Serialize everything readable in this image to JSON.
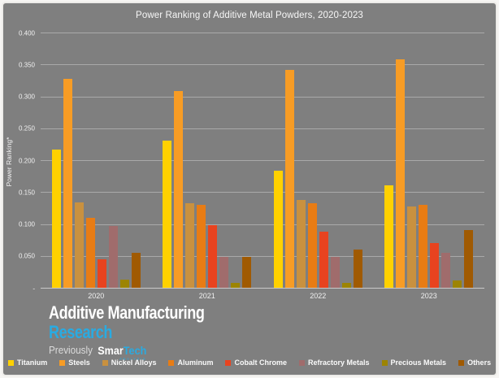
{
  "chart": {
    "background_color": "#7F7F7F",
    "gridline_color": "#A9A9A9",
    "axis_line_color": "#C9C9C9",
    "text_color": "#F2F2F2"
  },
  "chart_data": {
    "type": "bar",
    "title": "Power Ranking of Additive Metal Powders, 2020-2023",
    "xlabel": "",
    "ylabel": "Power Ranking*",
    "ylim": [
      0,
      0.4
    ],
    "ytick_step": 0.05,
    "y_tick_labels": [
      "0.400",
      "0.350",
      "0.300",
      "0.250",
      "0.200",
      "0.150",
      "0.100",
      "0.050",
      "-"
    ],
    "grid": true,
    "legend_position": "bottom",
    "categories": [
      "2020",
      "2021",
      "2022",
      "2023"
    ],
    "series": [
      {
        "name": "Titanium",
        "color": "#FFD100",
        "values": [
          0.217,
          0.23,
          0.183,
          0.16
        ]
      },
      {
        "name": "Steels",
        "color": "#F79C25",
        "values": [
          0.328,
          0.308,
          0.342,
          0.358
        ]
      },
      {
        "name": "Nickel Alloys",
        "color": "#C9913F",
        "values": [
          0.134,
          0.133,
          0.138,
          0.127
        ]
      },
      {
        "name": "Aluminum",
        "color": "#E87C14",
        "values": [
          0.11,
          0.13,
          0.133,
          0.13
        ]
      },
      {
        "name": "Cobalt Chrome",
        "color": "#E8431F",
        "values": [
          0.044,
          0.098,
          0.088,
          0.07
        ]
      },
      {
        "name": "Refractory Metals",
        "color": "#A06C6C",
        "values": [
          0.097,
          0.048,
          0.048,
          0.055
        ]
      },
      {
        "name": "Precious Metals",
        "color": "#9C8403",
        "values": [
          0.013,
          0.008,
          0.008,
          0.011
        ]
      },
      {
        "name": "Others",
        "color": "#A05A02",
        "values": [
          0.055,
          0.048,
          0.06,
          0.09
        ]
      }
    ]
  },
  "branding": {
    "line1": "Additive Manufacturing",
    "line2": "Research",
    "previously": "Previously",
    "smartech_white": "Smar",
    "smartech_cyan": "Tech",
    "smartech_sub": "ANALYSIS",
    "accent_cyan": "#29ABE2",
    "line1_color": "#FFFFFF"
  }
}
